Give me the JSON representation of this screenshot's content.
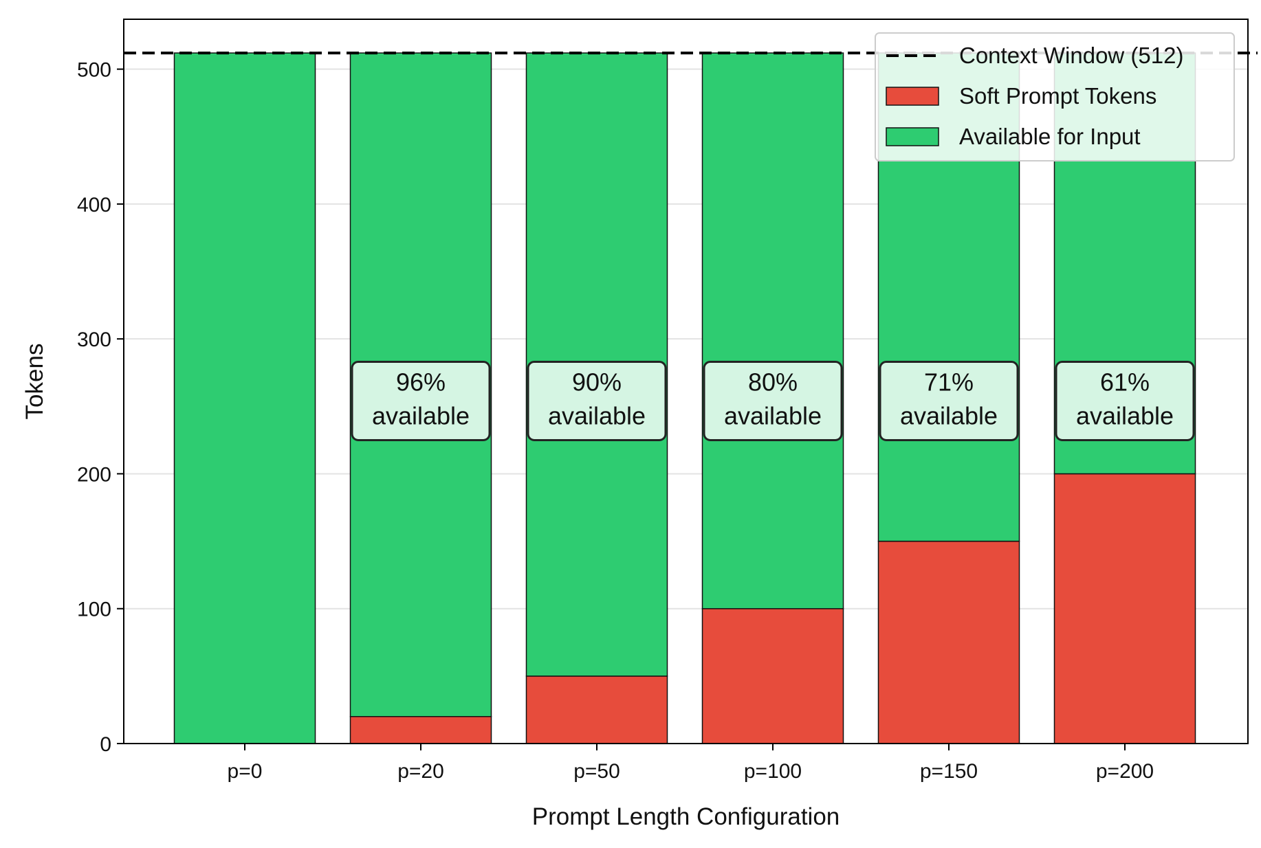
{
  "chart_data": {
    "type": "bar",
    "stacked": true,
    "title": "",
    "xlabel": "Prompt Length Configuration",
    "ylabel": "Tokens",
    "ylim": [
      0,
      537
    ],
    "yticks": [
      0,
      100,
      200,
      300,
      400,
      500
    ],
    "grid": "y",
    "legend_position": "top-right",
    "categories": [
      "p=0",
      "p=20",
      "p=50",
      "p=100",
      "p=150",
      "p=200"
    ],
    "series": [
      {
        "name": "Soft Prompt Tokens",
        "color": "#e74c3c",
        "values": [
          0,
          20,
          50,
          100,
          150,
          200
        ]
      },
      {
        "name": "Available for Input",
        "color": "#2ecc71",
        "values": [
          512,
          492,
          462,
          412,
          362,
          312
        ]
      }
    ],
    "reference_line": {
      "name": "Context Window (512)",
      "value": 512,
      "style": "dashed",
      "color": "#000000"
    },
    "annotations": [
      {
        "category": "p=20",
        "line1": "96%",
        "line2": "available"
      },
      {
        "category": "p=50",
        "line1": "90%",
        "line2": "available"
      },
      {
        "category": "p=100",
        "line1": "80%",
        "line2": "available"
      },
      {
        "category": "p=150",
        "line1": "71%",
        "line2": "available"
      },
      {
        "category": "p=200",
        "line1": "61%",
        "line2": "available"
      }
    ],
    "annotation_y": 255,
    "annotation_box_color": "#d5f5e3"
  }
}
